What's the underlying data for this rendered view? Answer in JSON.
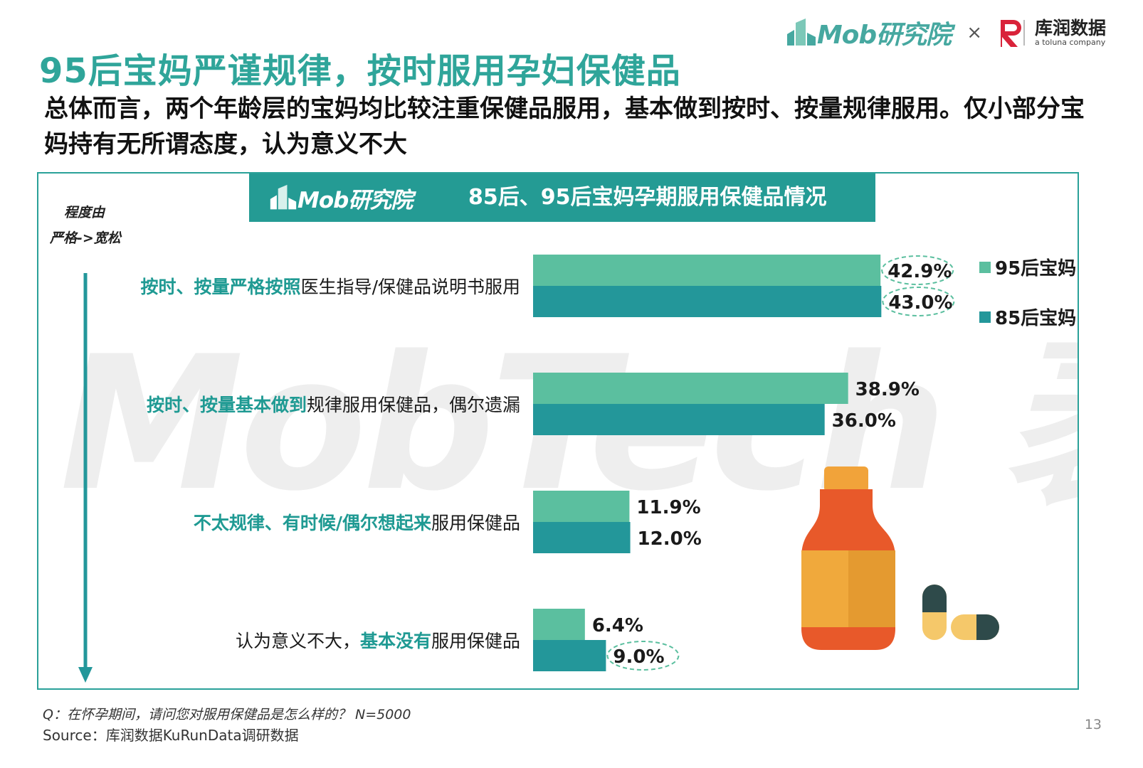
{
  "header": {
    "title": "95后宝妈严谨规律，按时服用孕妇保健品",
    "subtitle": "总体而言，两个年龄层的宝妈均比较注重保健品服用，基本做到按时、按量规律服用。仅小部分宝妈持有无所谓态度，认为意义不大",
    "logo_mob": "Mob研究院",
    "logo_cross": "×",
    "logo_kr_cn": "库润数据",
    "logo_kr_en": "a toluna company"
  },
  "panel": {
    "banner_logo": "Mob研究院",
    "banner_title": "85后、95后宝妈孕期服用保健品情况",
    "axis_label_line1": "程度由",
    "axis_label_line2": "严格->宽松",
    "watermark": "MobTech 袤博"
  },
  "chart_data": {
    "type": "bar",
    "orientation": "horizontal",
    "title": "85后、95后宝妈孕期服用保健品情况",
    "categories": [
      {
        "highlight": "按时、按量严格按照",
        "plain_after": "医生指导/保健品说明书服用",
        "plain_before": ""
      },
      {
        "highlight": "按时、按量基本做到",
        "plain_after": "规律服用保健品，偶尔遗漏",
        "plain_before": ""
      },
      {
        "highlight": "不太规律、有时候/偶尔想起来",
        "plain_after": "服用保健品",
        "plain_before": ""
      },
      {
        "highlight": "基本没有",
        "plain_after": "服用保健品",
        "plain_before": "认为意义不大，"
      }
    ],
    "series": [
      {
        "name": "95后宝妈",
        "color": "#5bbf9f",
        "values": [
          42.9,
          38.9,
          11.9,
          6.4
        ],
        "labels": [
          "42.9%",
          "38.9%",
          "11.9%",
          "6.4%"
        ]
      },
      {
        "name": "85后宝妈",
        "color": "#23979a",
        "values": [
          43.0,
          36.0,
          12.0,
          9.0
        ],
        "labels": [
          "43.0%",
          "36.0%",
          "12.0%",
          "9.0%"
        ]
      }
    ],
    "highlighted_labels": [
      [
        0,
        0
      ],
      [
        1,
        0
      ],
      [
        1,
        3
      ]
    ],
    "legend_position": "top-right",
    "grid": false
  },
  "colors": {
    "accent": "#2fa59a",
    "banner": "#249b94",
    "series_95": "#5bbf9f",
    "series_85": "#23979a",
    "highlight_text": "#1f9a93"
  },
  "footer": {
    "question": "Q：在怀孕期间，请问您对服用保健品是怎么样的？ N=5000",
    "source": "Source：库润数据KuRunData调研数据",
    "page": "13"
  }
}
